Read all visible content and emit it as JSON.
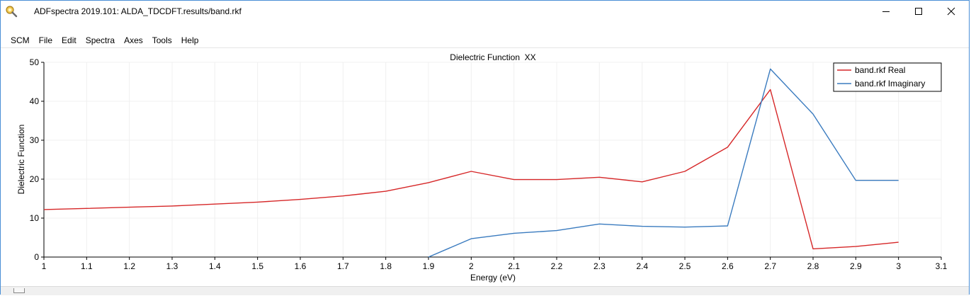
{
  "window": {
    "title": "ADFspectra 2019.101: ALDA_TDCDFT.results/band.rkf"
  },
  "window_controls": {
    "minimize": "minimize-icon",
    "maximize": "maximize-icon",
    "close": "close-icon"
  },
  "menu": {
    "items": [
      "SCM",
      "File",
      "Edit",
      "Spectra",
      "Axes",
      "Tools",
      "Help"
    ]
  },
  "colors": {
    "real": "#d62728",
    "imaginary": "#3a7bbf",
    "grid": "#f0f0f0"
  },
  "chart_data": {
    "type": "line",
    "title": "Dielectric Function  XX",
    "xlabel": "Energy (eV)",
    "ylabel": "Dielectric Function",
    "xlim": [
      1,
      3.1
    ],
    "ylim": [
      0,
      50
    ],
    "xticks": [
      "1",
      "1.1",
      "1.2",
      "1.3",
      "1.4",
      "1.5",
      "1.6",
      "1.7",
      "1.8",
      "1.9",
      "2",
      "2.1",
      "2.2",
      "2.3",
      "2.4",
      "2.5",
      "2.6",
      "2.7",
      "2.8",
      "2.9",
      "3",
      "3.1"
    ],
    "yticks": [
      "0",
      "10",
      "20",
      "30",
      "40",
      "50"
    ],
    "grid": true,
    "legend": "top-right",
    "series": [
      {
        "name": "band.rkf Real",
        "color": "#d62728",
        "x": [
          1.0,
          1.1,
          1.2,
          1.3,
          1.4,
          1.5,
          1.6,
          1.7,
          1.8,
          1.9,
          2.0,
          2.1,
          2.2,
          2.3,
          2.4,
          2.5,
          2.6,
          2.7,
          2.8,
          2.9,
          3.0
        ],
        "y": [
          12.2,
          12.5,
          12.8,
          13.1,
          13.6,
          14.1,
          14.8,
          15.7,
          16.9,
          19.1,
          22.0,
          19.9,
          19.9,
          20.5,
          19.3,
          22.0,
          28.2,
          43.0,
          2.1,
          2.7,
          3.8
        ]
      },
      {
        "name": "band.rkf Imaginary",
        "color": "#3a7bbf",
        "x": [
          1.9,
          2.0,
          2.1,
          2.2,
          2.3,
          2.4,
          2.5,
          2.6,
          2.7,
          2.8,
          2.9,
          3.0
        ],
        "y": [
          0.0,
          4.7,
          6.1,
          6.8,
          8.5,
          7.9,
          7.7,
          8.0,
          48.3,
          36.7,
          19.7,
          19.7
        ]
      }
    ]
  }
}
